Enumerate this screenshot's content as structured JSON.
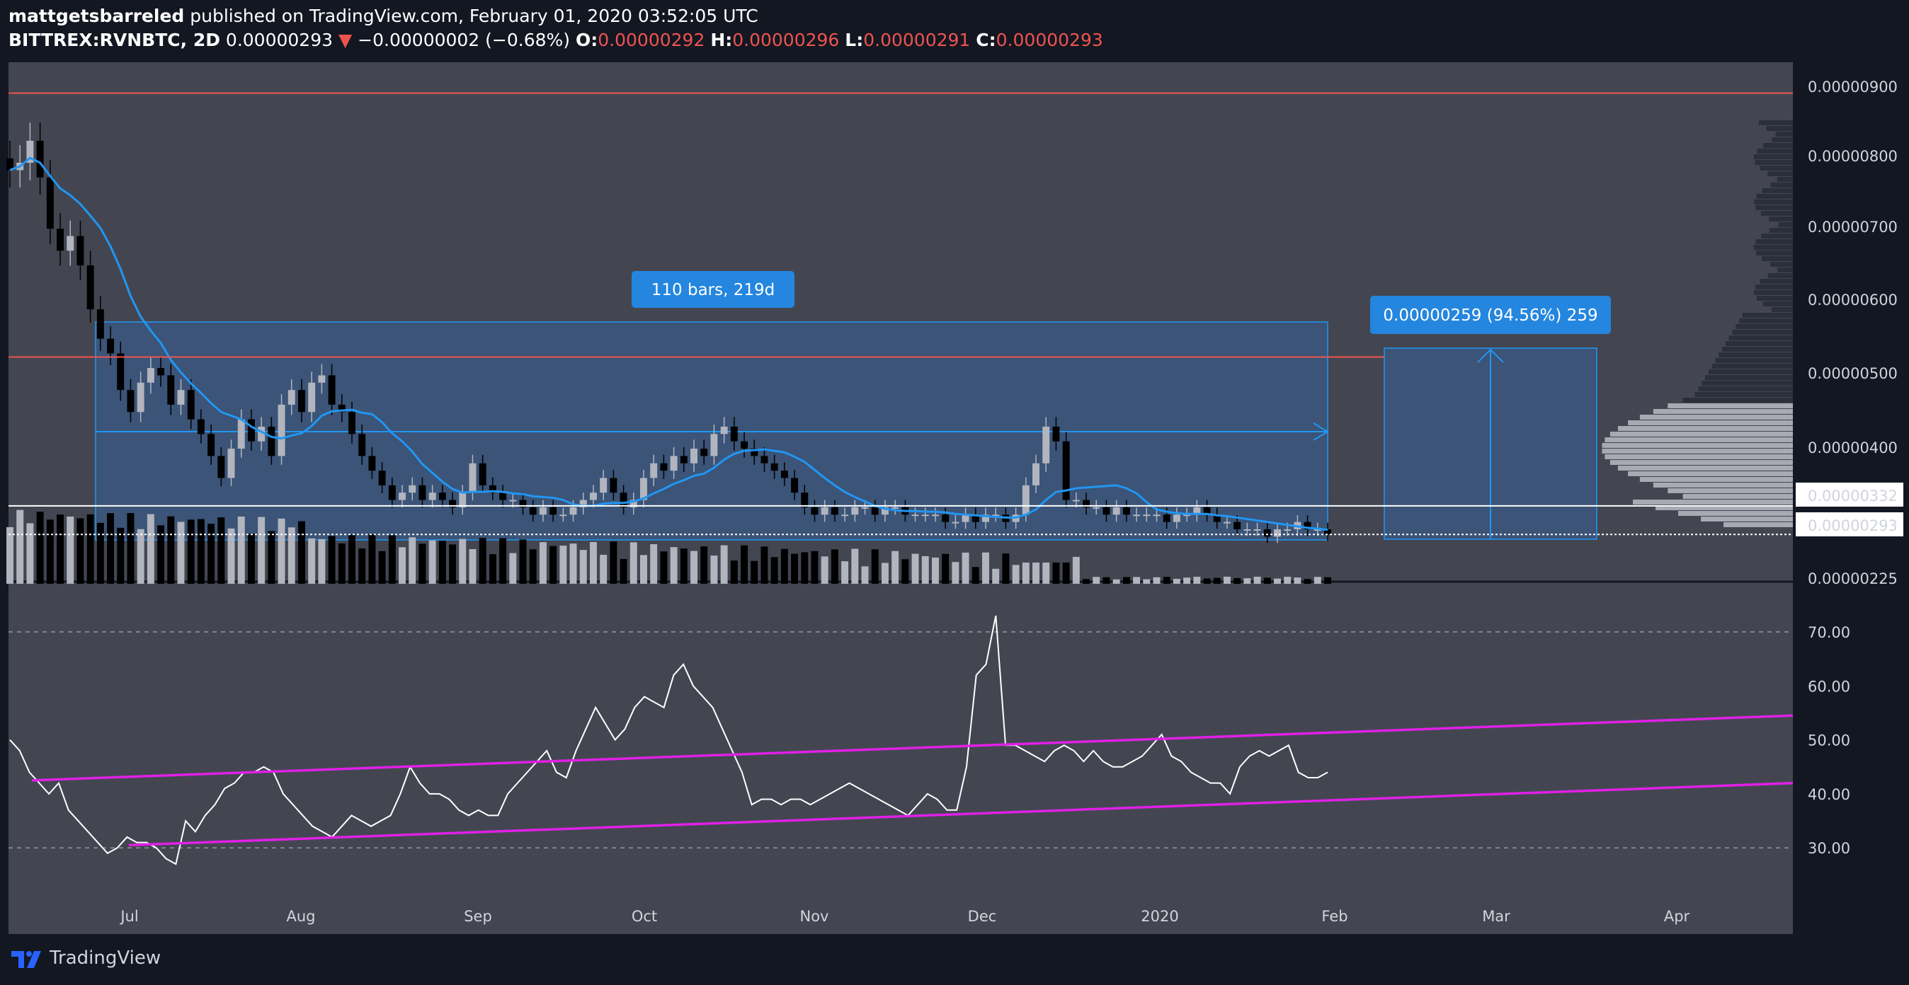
{
  "header": {
    "author": "mattgetsbarreled",
    "published": " published on TradingView.com, February 01, 2020 03:52:05 UTC",
    "symbol": "BITTREX:RVNBTC, 2D",
    "last": "0.00000293",
    "change": "−0.00000002 (−0.68%)",
    "o_label": "O:",
    "o_value": "0.00000292",
    "h_label": "H:",
    "h_value": "0.00000296",
    "l_label": "L:",
    "l_value": "0.00000291",
    "c_label": "C:",
    "c_value": "0.00000293",
    "down_arrow": "▼"
  },
  "footer": {
    "brand": "TradingView"
  },
  "annotations": {
    "range_label": "110 bars, 219d",
    "measure_label": "0.00000259 (94.56%) 259"
  },
  "colors": {
    "background": "#434651",
    "up_candle": "#b2b5be",
    "down_candle": "#000000",
    "ma_line": "#2196f3",
    "rsi_line": "#ffffff",
    "channel_line": "#e020e6",
    "resistance_line": "#ef5350",
    "range_fill": "#2a72c8",
    "label_bg": "#2486df"
  },
  "chart_data": [
    {
      "type": "candlestick",
      "symbol": "BITTREX:RVNBTC",
      "interval": "2D",
      "y_axis_ticks": [
        "0.00000900",
        "0.00000800",
        "0.00000700",
        "0.00000600",
        "0.00000500",
        "0.00000400",
        "0.00000225"
      ],
      "price_labels": [
        "0.00000332",
        "0.00000293"
      ],
      "x_axis_ticks": [
        "Jul",
        "Aug",
        "Sep",
        "Oct",
        "Nov",
        "Dec",
        "2020",
        "Feb",
        "Mar",
        "Apr"
      ],
      "ylim": [
        2.25e-06,
        9e-06
      ],
      "horizontal_lines": [
        8.95e-06,
        5.35e-06,
        3.32e-06,
        2.93e-06
      ],
      "moving_average": true,
      "volume_profile": true,
      "closes": [
        7.9e-06,
        8e-06,
        8.3e-06,
        7.8e-06,
        7.1e-06,
        6.8e-06,
        7e-06,
        6.6e-06,
        6e-06,
        5.6e-06,
        5.4e-06,
        4.9e-06,
        4.6e-06,
        5e-06,
        5.2e-06,
        5.1e-06,
        4.7e-06,
        4.9e-06,
        4.5e-06,
        4.3e-06,
        4e-06,
        3.7e-06,
        4.1e-06,
        4.5e-06,
        4.2e-06,
        4.4e-06,
        4e-06,
        4.7e-06,
        4.9e-06,
        4.6e-06,
        5e-06,
        5.1e-06,
        4.7e-06,
        4.6e-06,
        4.3e-06,
        4e-06,
        3.8e-06,
        3.6e-06,
        3.4e-06,
        3.5e-06,
        3.6e-06,
        3.4e-06,
        3.5e-06,
        3.4e-06,
        3.3e-06,
        3.5e-06,
        3.9e-06,
        3.6e-06,
        3.5e-06,
        3.4e-06,
        3.4e-06,
        3.3e-06,
        3.2e-06,
        3.3e-06,
        3.2e-06,
        3.2e-06,
        3.3e-06,
        3.4e-06,
        3.5e-06,
        3.7e-06,
        3.5e-06,
        3.3e-06,
        3.4e-06,
        3.7e-06,
        3.9e-06,
        3.8e-06,
        4e-06,
        3.9e-06,
        4.1e-06,
        4e-06,
        4.3e-06,
        4.4e-06,
        4.2e-06,
        4.1e-06,
        4e-06,
        3.9e-06,
        3.8e-06,
        3.7e-06,
        3.5e-06,
        3.3e-06,
        3.2e-06,
        3.3e-06,
        3.2e-06,
        3.2e-06,
        3.3e-06,
        3.3e-06,
        3.2e-06,
        3.3e-06,
        3.3e-06,
        3.2e-06,
        3.2e-06,
        3.2e-06,
        3.2e-06,
        3.1e-06,
        3.1e-06,
        3.2e-06,
        3.1e-06,
        3.2e-06,
        3.2e-06,
        3.1e-06,
        3.2e-06,
        3.6e-06,
        3.9e-06,
        4.4e-06,
        4.2e-06,
        3.4e-06,
        3.4e-06,
        3.3e-06,
        3.3e-06,
        3.2e-06,
        3.3e-06,
        3.2e-06,
        3.2e-06,
        3.2e-06,
        3.2e-06,
        3.1e-06,
        3.2e-06,
        3.2e-06,
        3.3e-06,
        3.2e-06,
        3.1e-06,
        3.1e-06,
        3e-06,
        3e-06,
        3e-06,
        2.9e-06,
        3e-06,
        3e-06,
        3.1e-06,
        3e-06,
        3e-06,
        2.93e-06
      ]
    },
    {
      "type": "line",
      "name": "RSI",
      "y_axis_ticks": [
        "70.00",
        "60.00",
        "50.00",
        "40.00",
        "30.00"
      ],
      "ylim": [
        25,
        75
      ],
      "reference_lines": [
        70,
        30
      ],
      "values": [
        50,
        48,
        44,
        42,
        40,
        42,
        37,
        35,
        33,
        31,
        29,
        30,
        32,
        31,
        31,
        30,
        28,
        27,
        35,
        33,
        36,
        38,
        41,
        42,
        44,
        44,
        45,
        44,
        40,
        38,
        36,
        34,
        33,
        32,
        34,
        36,
        35,
        34,
        35,
        36,
        40,
        45,
        42,
        40,
        40,
        39,
        37,
        36,
        37,
        36,
        36,
        40,
        42,
        44,
        46,
        48,
        44,
        43,
        48,
        52,
        56,
        53,
        50,
        52,
        56,
        58,
        57,
        56,
        62,
        64,
        60,
        58,
        56,
        52,
        48,
        44,
        38,
        39,
        39,
        38,
        39,
        39,
        38,
        39,
        40,
        41,
        42,
        41,
        40,
        39,
        38,
        37,
        36,
        38,
        40,
        39,
        37,
        37,
        45,
        62,
        64,
        73,
        49,
        49,
        48,
        47,
        46,
        48,
        49,
        48,
        46,
        48,
        46,
        45,
        45,
        46,
        47,
        49,
        51,
        47,
        46,
        44,
        43,
        42,
        42,
        40,
        45,
        47,
        48,
        47,
        48,
        49,
        44,
        43,
        43,
        44
      ],
      "channel_upper": [
        [
          0.0,
          42.5
        ],
        [
          1.0,
          54.5
        ]
      ],
      "channel_lower": [
        [
          0.055,
          30.5
        ],
        [
          1.0,
          42.0
        ]
      ]
    }
  ]
}
